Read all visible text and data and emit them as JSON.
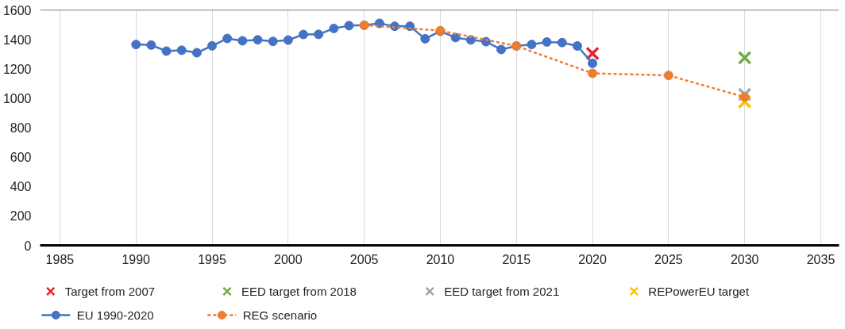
{
  "chart_data": {
    "type": "line",
    "xlim": [
      1983.7,
      2036.2
    ],
    "xticks": [
      1985,
      1990,
      1995,
      2000,
      2005,
      2010,
      2015,
      2020,
      2025,
      2030,
      2035
    ],
    "ylim": [
      0,
      1600
    ],
    "yticks": [
      0,
      200,
      400,
      600,
      800,
      1000,
      1200,
      1400,
      1600
    ],
    "grid": "x",
    "legend": "bottom",
    "series": [
      {
        "name": "Target from 2007",
        "type": "scatter",
        "marker": "cross",
        "color": "#e3222b",
        "x": [
          2020
        ],
        "values": [
          1304
        ]
      },
      {
        "name": "EED target from 2018",
        "type": "scatter",
        "marker": "cross",
        "color": "#70ad47",
        "x": [
          2030
        ],
        "values": [
          1275
        ]
      },
      {
        "name": "EED target from 2021",
        "type": "scatter",
        "marker": "cross",
        "color": "#a5a5a5",
        "x": [
          2030
        ],
        "values": [
          1026
        ]
      },
      {
        "name": "REPowerEU target",
        "type": "scatter",
        "marker": "cross",
        "color": "#ffc000",
        "x": [
          2030
        ],
        "values": [
          976
        ]
      },
      {
        "name": "EU 1990-2020",
        "marker": "circle",
        "line_style": "solid",
        "color": "#4472c4",
        "x": [
          1990,
          1991,
          1992,
          1993,
          1994,
          1995,
          1996,
          1997,
          1998,
          1999,
          2000,
          2001,
          2002,
          2003,
          2004,
          2005,
          2006,
          2007,
          2008,
          2009,
          2010,
          2011,
          2012,
          2013,
          2014,
          2015,
          2016,
          2017,
          2018,
          2019,
          2020
        ],
        "values": [
          1365,
          1361,
          1320,
          1326,
          1309,
          1356,
          1406,
          1390,
          1397,
          1386,
          1395,
          1433,
          1434,
          1474,
          1493,
          1496,
          1509,
          1489,
          1489,
          1404,
          1455,
          1412,
          1396,
          1384,
          1331,
          1355,
          1365,
          1382,
          1378,
          1355,
          1237
        ]
      },
      {
        "name": "REG scenario",
        "marker": "circle",
        "line_style": "dashed",
        "color": "#ed7d31",
        "x": [
          2005,
          2010,
          2015,
          2020,
          2025,
          2030
        ],
        "values": [
          1496,
          1459,
          1355,
          1169,
          1155,
          1008
        ]
      }
    ]
  }
}
